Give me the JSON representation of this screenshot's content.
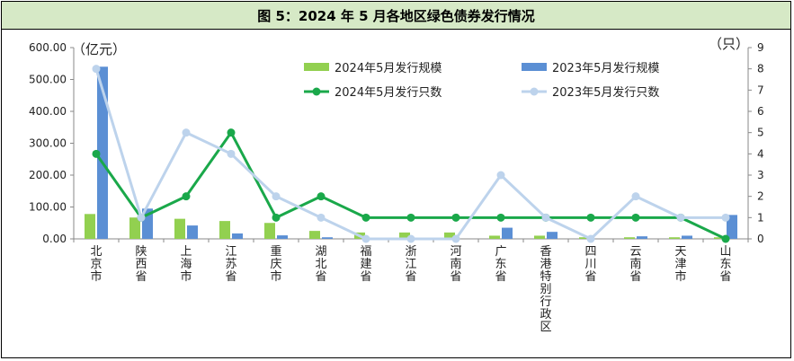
{
  "chart_data": {
    "type": "bar",
    "title": "图 5：2024 年 5 月各地区绿色债券发行情况",
    "y_left_unit": "（亿元）",
    "y_right_unit": "（只）",
    "ylim_left": [
      0,
      600
    ],
    "ylim_right": [
      0,
      9
    ],
    "y_left_ticks": [
      "0.00",
      "100.00",
      "200.00",
      "300.00",
      "400.00",
      "500.00",
      "600.00"
    ],
    "y_right_ticks": [
      "0",
      "1",
      "2",
      "3",
      "4",
      "5",
      "6",
      "7",
      "8",
      "9"
    ],
    "categories": [
      "北京市",
      "陕西省",
      "上海市",
      "江苏省",
      "重庆市",
      "湖北省",
      "福建省",
      "浙江省",
      "河南省",
      "广东省",
      "香港特别行政区",
      "四川省",
      "云南省",
      "天津市",
      "山东省"
    ],
    "series": [
      {
        "name": "2024年5月发行规模",
        "type": "bar",
        "axis": "left",
        "color": "#92d050",
        "values": [
          78,
          67,
          63,
          56,
          50,
          25,
          20,
          20,
          20,
          10,
          10,
          5,
          5,
          5,
          5
        ]
      },
      {
        "name": "2023年5月发行规模",
        "type": "bar",
        "axis": "left",
        "color": "#5b8fd4",
        "values": [
          540,
          95,
          42,
          17,
          11,
          5,
          0,
          0,
          0,
          35,
          22,
          0,
          8,
          10,
          75
        ]
      },
      {
        "name": "2024年5月发行只数",
        "type": "line",
        "axis": "right",
        "color": "#1aa84a",
        "values": [
          4,
          1,
          2,
          5,
          1,
          2,
          1,
          1,
          1,
          1,
          1,
          1,
          1,
          1,
          0
        ]
      },
      {
        "name": "2023年5月发行只数",
        "type": "line",
        "axis": "right",
        "color": "#bdd3ec",
        "values": [
          8,
          1,
          5,
          4,
          2,
          1,
          0,
          0,
          0,
          3,
          1,
          0,
          2,
          1,
          1
        ]
      }
    ]
  }
}
